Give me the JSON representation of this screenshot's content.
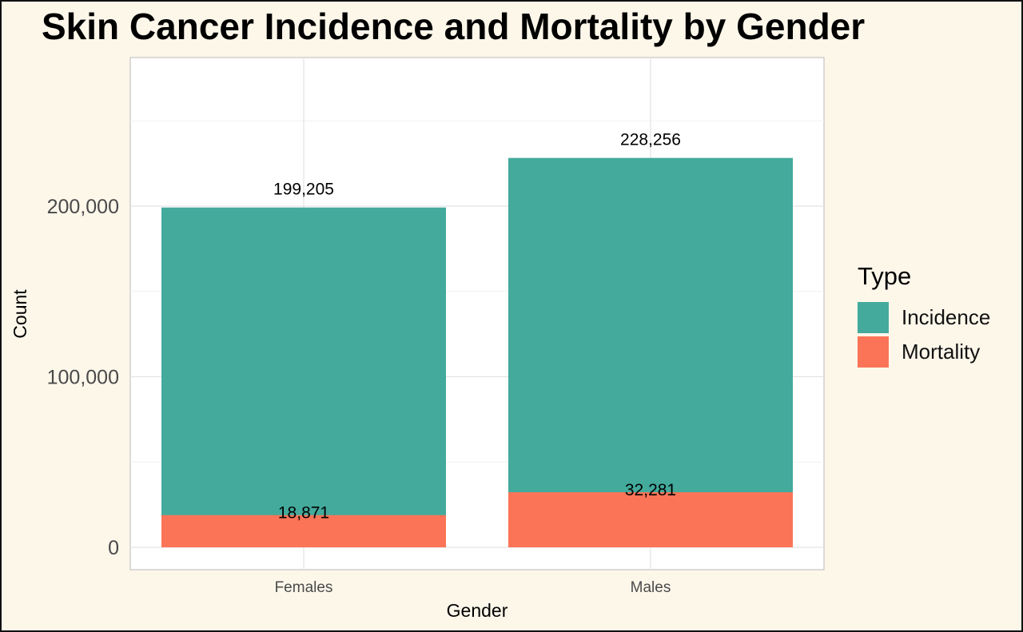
{
  "chart_data": {
    "type": "bar",
    "stacked": true,
    "title": "Skin Cancer Incidence and Mortality by Gender",
    "xlabel": "Gender",
    "ylabel": "Count",
    "categories": [
      "Females",
      "Males"
    ],
    "series": [
      {
        "name": "Incidence",
        "values": [
          199205,
          228256
        ],
        "color": "#43aa9c"
      },
      {
        "name": "Mortality",
        "values": [
          18871,
          32281
        ],
        "color": "#fb7457"
      }
    ],
    "data_labels": {
      "Incidence": [
        "199,205",
        "228,256"
      ],
      "Mortality": [
        "18,871",
        "32,281"
      ]
    },
    "yticks": [
      0,
      100000,
      200000
    ],
    "ytick_labels": [
      "0",
      "100,000",
      "200,000"
    ],
    "ylim": [
      0,
      265000
    ],
    "grid": true,
    "legend_title": "Type",
    "legend_position": "right"
  }
}
